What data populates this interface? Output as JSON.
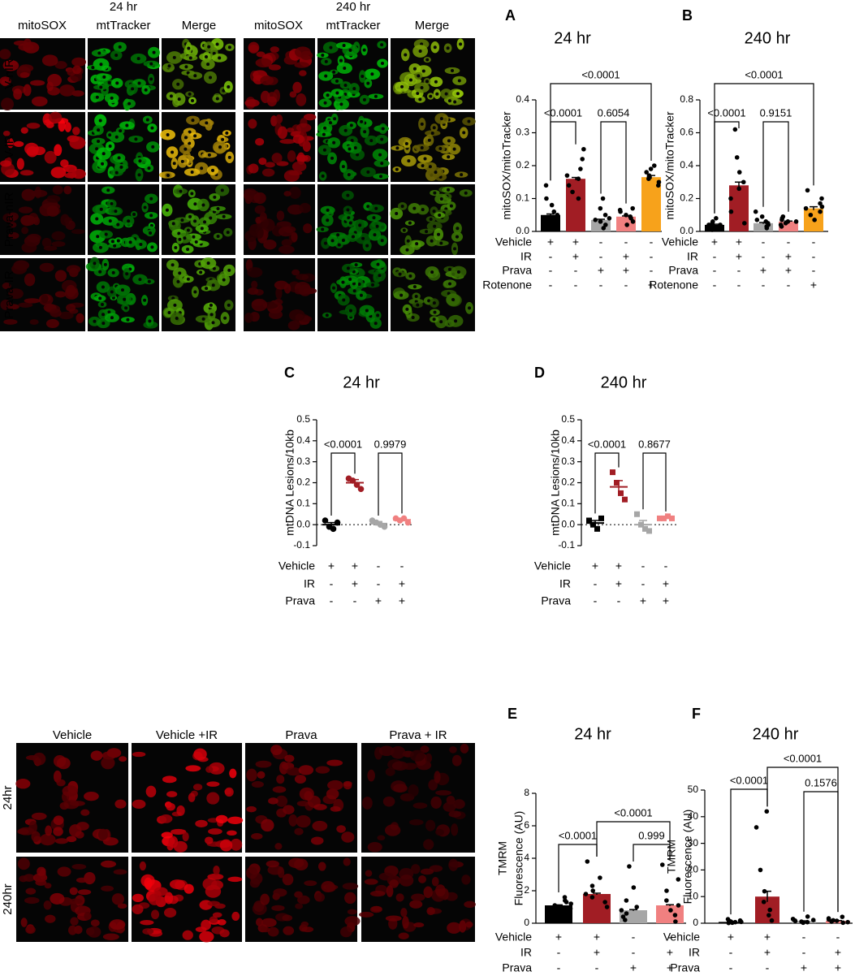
{
  "micrographs_top": {
    "time_labels": [
      "24 hr",
      "240 hr"
    ],
    "columns": [
      "mitoSOX",
      "mtTracker",
      "Merge"
    ],
    "rows": [
      "V-nIR",
      "V-IR",
      "Prava-nIR",
      "Prava-IR"
    ]
  },
  "micrographs_bottom": {
    "columns": [
      "Vehicle",
      "Vehicle +IR",
      "Prava",
      "Prava + IR"
    ],
    "rows": [
      "24hr",
      "240hr"
    ]
  },
  "chart_data": [
    {
      "type": "bar",
      "panel": "A",
      "title": "24 hr",
      "ylabel": "mitoSOX/mitoTracker",
      "ylim": [
        0,
        0.4
      ],
      "yticks": [
        {
          "value": 0,
          "label": "0.0"
        },
        0.1,
        0.2,
        0.3,
        0.4
      ],
      "colors": [
        "#000000",
        "#a11d24",
        "#a6a6a6",
        "#f08080",
        "#f7a21b"
      ],
      "values": [
        0.05,
        0.16,
        0.035,
        0.045,
        0.165
      ],
      "errors": [
        0.003,
        0.004,
        0.002,
        0.002,
        0.005
      ],
      "points": [
        [
          0.02,
          0.03,
          0.04,
          0.05,
          0.06,
          0.08,
          0.1,
          0.14
        ],
        [
          0.1,
          0.12,
          0.14,
          0.16,
          0.17,
          0.19,
          0.22,
          0.25
        ],
        [
          0.01,
          0.02,
          0.03,
          0.035,
          0.04,
          0.05,
          0.07,
          0.1
        ],
        [
          0.02,
          0.03,
          0.04,
          0.045,
          0.05,
          0.06,
          0.065,
          0.07
        ],
        [
          0.14,
          0.15,
          0.16,
          0.165,
          0.17,
          0.18,
          0.19,
          0.2
        ]
      ],
      "conditions": [
        {
          "name": "Vehicle",
          "marks": [
            "+",
            "+",
            "-",
            "-",
            "-"
          ]
        },
        {
          "name": "IR",
          "marks": [
            "-",
            "+",
            "-",
            "+",
            "-"
          ]
        },
        {
          "name": "Prava",
          "marks": [
            "-",
            "-",
            "+",
            "+",
            "-"
          ]
        },
        {
          "name": "Rotenone",
          "marks": [
            "-",
            "-",
            "-",
            "-",
            "+"
          ]
        }
      ],
      "annotations": [
        "<0.0001",
        "<0.0001",
        "0.6054"
      ]
    },
    {
      "type": "bar",
      "panel": "B",
      "title": "240 hr",
      "ylabel": "mitoSOX/mitoTracker",
      "ylim": [
        0,
        0.8
      ],
      "yticks": [
        {
          "value": 0,
          "label": "0.0"
        },
        0.2,
        0.4,
        0.6,
        0.8
      ],
      "colors": [
        "#000000",
        "#a11d24",
        "#a6a6a6",
        "#f08080",
        "#f7a21b"
      ],
      "values": [
        0.04,
        0.28,
        0.05,
        0.06,
        0.14
      ],
      "errors": [
        0.004,
        0.02,
        0.004,
        0.003,
        0.01
      ],
      "points": [
        [
          0.01,
          0.02,
          0.03,
          0.04,
          0.04,
          0.05,
          0.06,
          0.08
        ],
        [
          0.05,
          0.12,
          0.2,
          0.26,
          0.3,
          0.36,
          0.45,
          0.62
        ],
        [
          0.02,
          0.03,
          0.04,
          0.05,
          0.06,
          0.07,
          0.09,
          0.12
        ],
        [
          0.03,
          0.04,
          0.05,
          0.06,
          0.06,
          0.07,
          0.08,
          0.09
        ],
        [
          0.07,
          0.1,
          0.12,
          0.14,
          0.15,
          0.17,
          0.2,
          0.25
        ]
      ],
      "conditions": [
        {
          "name": "Vehicle",
          "marks": [
            "+",
            "+",
            "-",
            "-",
            "-"
          ]
        },
        {
          "name": "IR",
          "marks": [
            "-",
            "+",
            "-",
            "+",
            "-"
          ]
        },
        {
          "name": "Prava",
          "marks": [
            "-",
            "-",
            "+",
            "+",
            "-"
          ]
        },
        {
          "name": "Rotenone",
          "marks": [
            "-",
            "-",
            "-",
            "-",
            "+"
          ]
        }
      ],
      "annotations": [
        "<0.0001",
        "<0.0001",
        "0.9151"
      ]
    },
    {
      "type": "scatter",
      "panel": "C",
      "title": "24 hr",
      "ylabel": "mtDNA Lesions/10kb",
      "marker": "circle",
      "zero_line": true,
      "ylim": [
        -0.1,
        0.5
      ],
      "yticks": [
        -0.1,
        {
          "value": 0,
          "label": "0.0"
        },
        0.1,
        0.2,
        0.3,
        0.4,
        0.5
      ],
      "colors": [
        "#000000",
        "#a11d24",
        "#a6a6a6",
        "#f08080"
      ],
      "values": [
        0.0,
        0.2,
        0.005,
        0.023
      ],
      "errors": [
        0.01,
        0.015,
        0.01,
        0.006
      ],
      "points": [
        [
          0.02,
          -0.01,
          -0.02,
          0.01
        ],
        [
          0.22,
          0.21,
          0.19,
          0.17
        ],
        [
          0.02,
          0.01,
          0.0,
          -0.01
        ],
        [
          0.03,
          0.02,
          0.03,
          0.01
        ]
      ],
      "conditions": [
        {
          "name": "Vehicle",
          "marks": [
            "+",
            "+",
            "-",
            "-"
          ]
        },
        {
          "name": "IR",
          "marks": [
            "-",
            "+",
            "-",
            "+"
          ]
        },
        {
          "name": "Prava",
          "marks": [
            "-",
            "-",
            "+",
            "+"
          ]
        }
      ],
      "annotations": [
        "<0.0001",
        "0.9979"
      ]
    },
    {
      "type": "scatter",
      "panel": "D",
      "title": "240 hr",
      "ylabel": "mtDNA Lesions/10kb",
      "marker": "square",
      "zero_line": true,
      "ylim": [
        -0.1,
        0.5
      ],
      "yticks": [
        -0.1,
        {
          "value": 0,
          "label": "0.0"
        },
        0.1,
        0.2,
        0.3,
        0.4,
        0.5
      ],
      "colors": [
        "#000000",
        "#a11d24",
        "#a6a6a6",
        "#f08080"
      ],
      "values": [
        0.008,
        0.18,
        0.0,
        0.033
      ],
      "errors": [
        0.012,
        0.03,
        0.02,
        0.003
      ],
      "points": [
        [
          0.02,
          0.0,
          -0.02,
          0.03
        ],
        [
          0.25,
          0.2,
          0.15,
          0.12
        ],
        [
          0.05,
          0.0,
          -0.02,
          -0.03
        ],
        [
          0.03,
          0.03,
          0.04,
          0.03
        ]
      ],
      "conditions": [
        {
          "name": "Vehicle",
          "marks": [
            "+",
            "+",
            "-",
            "-"
          ]
        },
        {
          "name": "IR",
          "marks": [
            "-",
            "+",
            "-",
            "+"
          ]
        },
        {
          "name": "Prava",
          "marks": [
            "-",
            "-",
            "+",
            "+"
          ]
        }
      ],
      "annotations": [
        "<0.0001",
        "0.8677"
      ]
    },
    {
      "type": "bar",
      "panel": "E",
      "title": "24 hr",
      "ylabel": [
        "TMRM",
        "Fluorescence (AU)"
      ],
      "ylim": [
        0,
        8
      ],
      "yticks": [
        0,
        2,
        4,
        6,
        8
      ],
      "colors": [
        "#000000",
        "#a11d24",
        "#a6a6a6",
        "#f08080"
      ],
      "values": [
        1.1,
        1.8,
        0.8,
        1.1
      ],
      "errors": [
        0.03,
        0.05,
        0.04,
        0.04
      ],
      "points": [
        [
          0.8,
          0.9,
          1,
          1.1,
          1.2,
          1.3,
          1.4,
          1.6
        ],
        [
          1,
          1.3,
          1.6,
          1.8,
          2,
          2.3,
          2.8,
          3.8
        ],
        [
          0.2,
          0.4,
          0.6,
          0.8,
          1,
          1.4,
          2.2,
          3.5
        ],
        [
          0.1,
          0.5,
          0.8,
          1.1,
          1.4,
          2,
          2.7,
          3.6
        ]
      ],
      "conditions": [
        {
          "name": "Vehicle",
          "marks": [
            "+",
            "+",
            "-",
            "-"
          ]
        },
        {
          "name": "IR",
          "marks": [
            "-",
            "+",
            "-",
            "+"
          ]
        },
        {
          "name": "Prava",
          "marks": [
            "-",
            "-",
            "+",
            "+"
          ]
        }
      ],
      "annotations": [
        "<0.0001",
        "<0.0001",
        "0.999"
      ]
    },
    {
      "type": "bar",
      "panel": "F",
      "title": "240 hr",
      "ylabel": [
        "TMRM",
        "Fluorescence (AU)"
      ],
      "ylim": [
        0,
        50
      ],
      "yticks": [
        0,
        10,
        20,
        30,
        40,
        50
      ],
      "colors": [
        "#000000",
        "#a11d24",
        "#a6a6a6",
        "#f08080"
      ],
      "values": [
        0.5,
        10,
        0.8,
        0.9
      ],
      "errors": [
        0.1,
        2,
        0.1,
        0.1
      ],
      "points": [
        [
          0.1,
          0.2,
          0.4,
          0.5,
          0.6,
          0.8,
          1,
          1.5
        ],
        [
          1,
          3,
          5,
          8,
          12,
          20,
          36,
          42
        ],
        [
          0.2,
          0.4,
          0.6,
          0.8,
          1,
          1.2,
          1.6,
          2.5
        ],
        [
          0.2,
          0.4,
          0.6,
          0.9,
          1.1,
          1.4,
          1.8,
          2.4
        ]
      ],
      "conditions": [
        {
          "name": "Vehicle",
          "marks": [
            "+",
            "+",
            "-",
            "-"
          ]
        },
        {
          "name": "IR",
          "marks": [
            "-",
            "+",
            "-",
            "+"
          ]
        },
        {
          "name": "Prava",
          "marks": [
            "-",
            "-",
            "+",
            "+"
          ]
        }
      ],
      "annotations": [
        "<0.0001",
        "<0.0001",
        "0.1576"
      ]
    }
  ]
}
